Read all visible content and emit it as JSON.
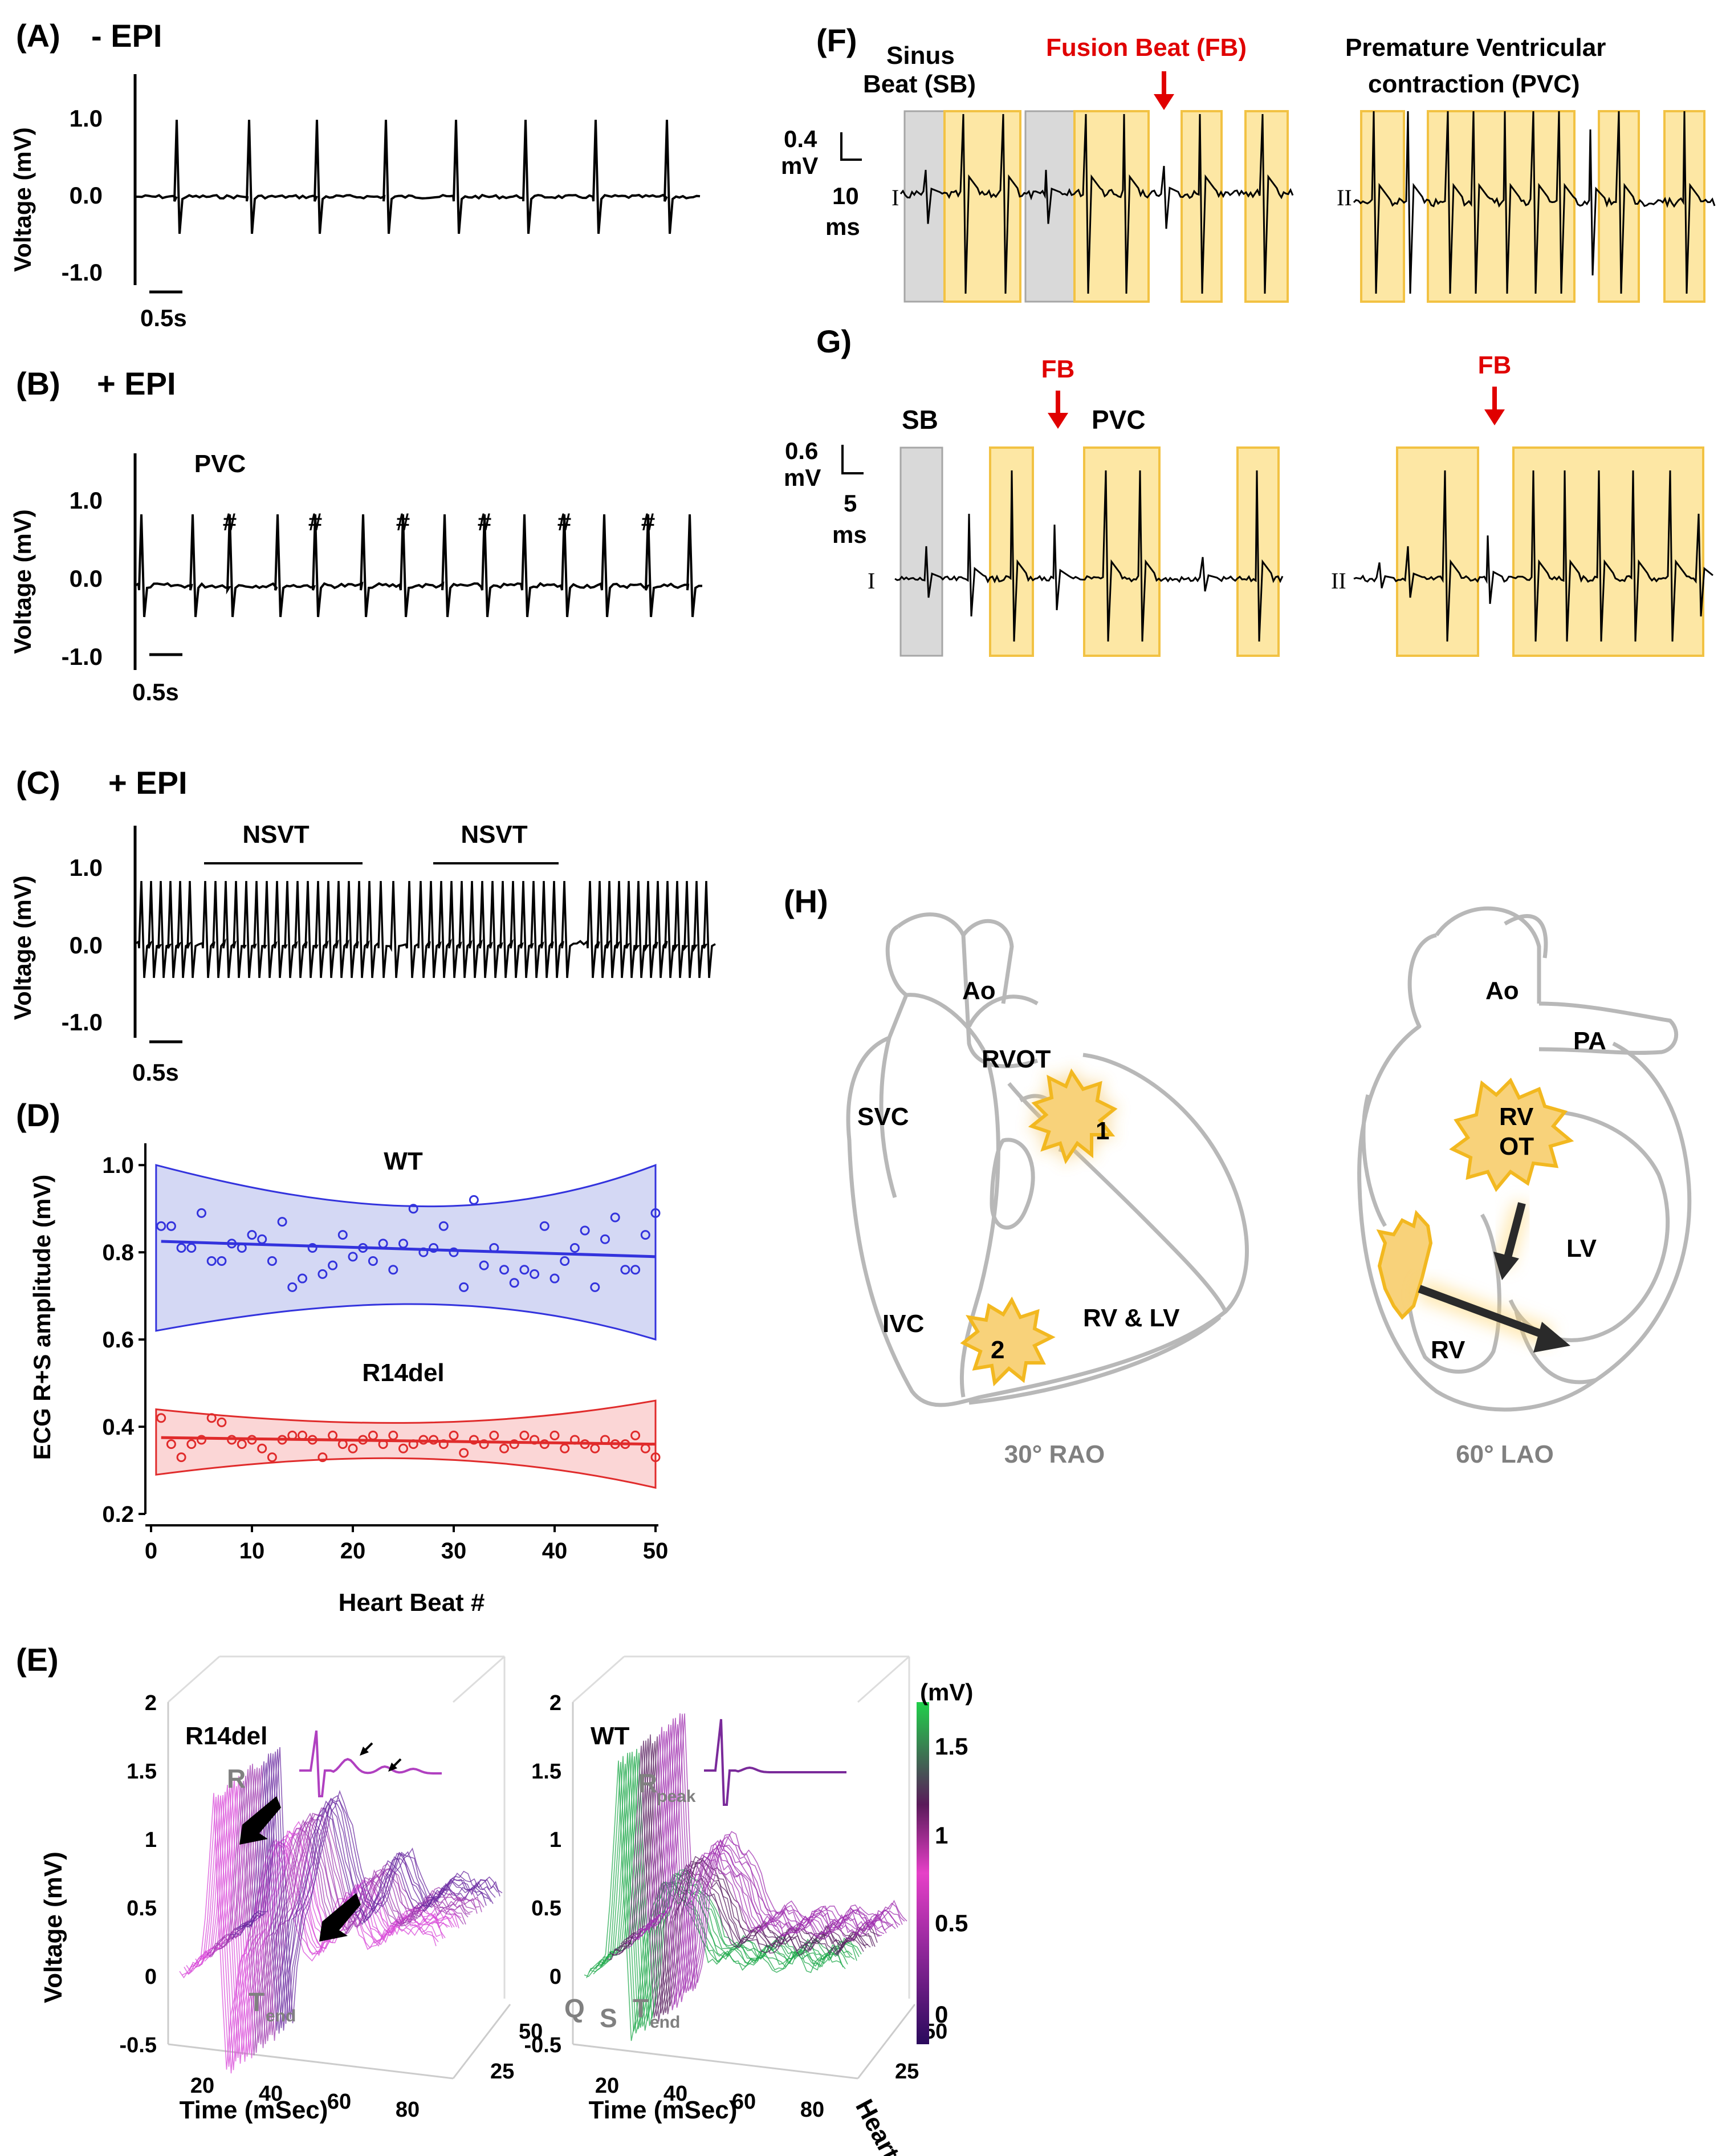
{
  "panelA": {
    "letter": "(A)",
    "title": "- EPI",
    "yticks": [
      "1.0",
      "0.0",
      "-1.0"
    ],
    "ylabel": "Voltage (mV)",
    "scale": "0.5s"
  },
  "panelB": {
    "letter": "(B)",
    "title": "+ EPI",
    "annotation": "PVC",
    "marker": "#",
    "yticks": [
      "1.0",
      "0.0",
      "-1.0"
    ],
    "ylabel": "Voltage (mV)",
    "scale": "0.5s"
  },
  "panelC": {
    "letter": "(C)",
    "title": "+ EPI",
    "nsvt": [
      "NSVT",
      "NSVT"
    ],
    "yticks": [
      "1.0",
      "0.0",
      "-1.0"
    ],
    "ylabel": "Voltage (mV)",
    "scale": "0.5s"
  },
  "panelD": {
    "letter": "(D)",
    "ylabel": "ECG R+S amplitude (mV)",
    "xlabel": "Heart Beat #",
    "group_wt": "WT",
    "group_r14": "R14del"
  },
  "panelE": {
    "letter": "(E)",
    "left_title": "R14del",
    "right_title": "WT",
    "ylabel": "Voltage (mV)",
    "xlabel": "Time (mSec)",
    "depth_label": "Heart Beat #)",
    "zticks": [
      "2",
      "1.5",
      "1",
      "0.5",
      "0",
      "-0.5"
    ],
    "xticks": [
      "20",
      "40",
      "60",
      "80"
    ],
    "depth_ticks": [
      "50",
      "25"
    ],
    "R": "R",
    "Rpeak": "R",
    "Rpeak_sub": "peak",
    "T": "T",
    "T_sub": "end",
    "Q": "Q",
    "S": "S",
    "colorbar_unit": "(mV)",
    "colorbar_ticks": [
      "1.5",
      "1",
      "0.5",
      "0"
    ]
  },
  "panelF": {
    "letter": "(F)",
    "sinus": "Sinus",
    "sinus2": "Beat (SB)",
    "fusion": "Fusion Beat (FB)",
    "pvc1": "Premature Ventricular",
    "pvc2": "contraction (PVC)",
    "scale_v": "0.4",
    "scale_v_unit": "mV",
    "scale_t": "10",
    "scale_t_unit": "ms",
    "lead1": "I",
    "lead2": "II"
  },
  "panelG": {
    "letter": "G)",
    "sb": "SB",
    "fb": "FB",
    "pvc": "PVC",
    "scale_v": "0.6",
    "scale_v_unit": "mV",
    "scale_t": "5",
    "scale_t_unit": "ms",
    "lead1": "I",
    "lead2": "II"
  },
  "panelH": {
    "letter": "(H)",
    "rao": {
      "ao": "Ao",
      "rvot": "RVOT",
      "svc": "SVC",
      "ivc": "IVC",
      "rvlv": "RV & LV",
      "s1": "1",
      "s2": "2",
      "view": "30° RAO"
    },
    "lao": {
      "ao": "Ao",
      "pa": "PA",
      "rv_ot1": "RV",
      "rv_ot2": "OT",
      "lv": "LV",
      "rv": "RV",
      "view": "60° LAO"
    }
  },
  "colors": {
    "wt": "#3333dd",
    "r14": "#e02b2b",
    "highlight": "#fde7a4",
    "sinus": "#d9d9d9",
    "red": "#e00000",
    "heart": "#b8b8b8",
    "spark": "#f7c840"
  },
  "chart_data": [
    {
      "type": "scatter",
      "title": "ECG R+S amplitude",
      "xlabel": "Heart Beat #",
      "ylabel": "ECG R+S amplitude (mV)",
      "xlim": [
        0,
        50
      ],
      "ylim": [
        0.2,
        1.05
      ],
      "xticks": [
        0,
        10,
        20,
        30,
        40,
        50
      ],
      "yticks": [
        0.2,
        0.4,
        0.6,
        0.8,
        1.0
      ],
      "series": [
        {
          "name": "WT",
          "x": [
            1,
            2,
            3,
            4,
            5,
            6,
            7,
            8,
            9,
            10,
            11,
            12,
            13,
            14,
            15,
            16,
            17,
            18,
            19,
            20,
            21,
            22,
            23,
            24,
            25,
            26,
            27,
            28,
            29,
            30,
            31,
            32,
            33,
            34,
            35,
            36,
            37,
            38,
            39,
            40,
            41,
            42,
            43,
            44,
            45,
            46,
            47,
            48,
            49,
            50
          ],
          "values": [
            0.86,
            0.86,
            0.81,
            0.81,
            0.89,
            0.78,
            0.78,
            0.82,
            0.81,
            0.84,
            0.83,
            0.78,
            0.87,
            0.72,
            0.74,
            0.81,
            0.75,
            0.77,
            0.84,
            0.79,
            0.81,
            0.78,
            0.82,
            0.76,
            0.82,
            0.9,
            0.8,
            0.81,
            0.86,
            0.8,
            0.72,
            0.92,
            0.77,
            0.81,
            0.76,
            0.73,
            0.76,
            0.75,
            0.86,
            0.74,
            0.78,
            0.81,
            0.85,
            0.72,
            0.83,
            0.88,
            0.76,
            0.76,
            0.84,
            0.89
          ],
          "fit": [
            0.825,
            0.79
          ],
          "band_upper": [
            1.0,
            0.9,
            0.85,
            1.0
          ],
          "band_lower": [
            0.62,
            0.69,
            0.72,
            0.6
          ]
        },
        {
          "name": "R14del",
          "x": [
            1,
            2,
            3,
            4,
            5,
            6,
            7,
            8,
            9,
            10,
            11,
            12,
            13,
            14,
            15,
            16,
            17,
            18,
            19,
            20,
            21,
            22,
            23,
            24,
            25,
            26,
            27,
            28,
            29,
            30,
            31,
            32,
            33,
            34,
            35,
            36,
            37,
            38,
            39,
            40,
            41,
            42,
            43,
            44,
            45,
            46,
            47,
            48,
            49,
            50
          ],
          "values": [
            0.42,
            0.36,
            0.33,
            0.36,
            0.37,
            0.42,
            0.41,
            0.37,
            0.36,
            0.37,
            0.35,
            0.33,
            0.37,
            0.38,
            0.38,
            0.37,
            0.33,
            0.38,
            0.36,
            0.35,
            0.37,
            0.38,
            0.36,
            0.38,
            0.35,
            0.36,
            0.37,
            0.37,
            0.36,
            0.38,
            0.34,
            0.37,
            0.36,
            0.38,
            0.35,
            0.36,
            0.38,
            0.37,
            0.36,
            0.38,
            0.35,
            0.37,
            0.36,
            0.35,
            0.37,
            0.36,
            0.36,
            0.38,
            0.35,
            0.33
          ],
          "fit": [
            0.375,
            0.36
          ],
          "band_upper": [
            0.44,
            0.4,
            0.39,
            0.46
          ],
          "band_lower": [
            0.29,
            0.34,
            0.35,
            0.26
          ]
        }
      ]
    },
    {
      "type": "line",
      "title": "- EPI",
      "ylabel": "Voltage (mV)",
      "ylim": [
        -1.0,
        1.0
      ],
      "beats": 8
    },
    {
      "type": "line",
      "title": "+ EPI",
      "ylabel": "Voltage (mV)",
      "ylim": [
        -1.0,
        1.0
      ],
      "beats": 7,
      "pvc_count": 6
    },
    {
      "type": "line",
      "title": "+ EPI",
      "ylabel": "Voltage (mV)",
      "ylim": [
        -1.0,
        1.0
      ],
      "episodes": [
        "NSVT",
        "NSVT"
      ]
    }
  ]
}
